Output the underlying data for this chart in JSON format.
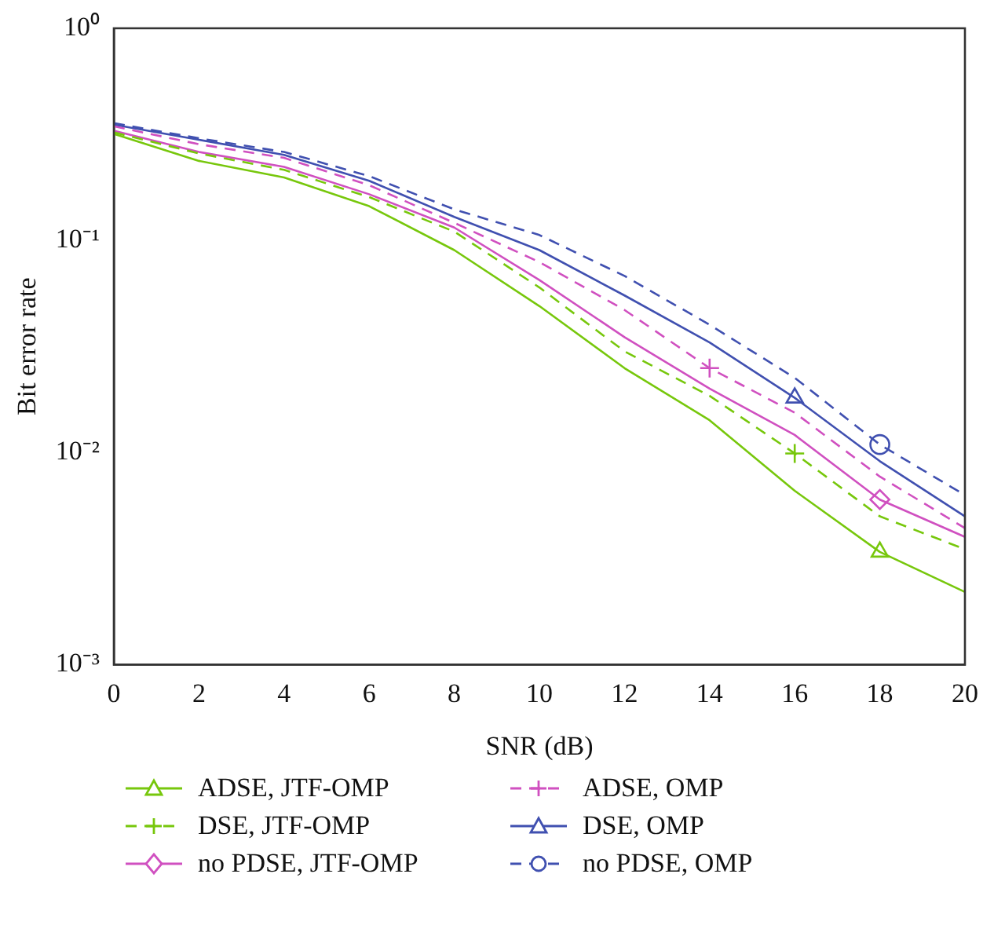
{
  "chart_data": {
    "type": "line",
    "xlabel": "SNR (dB)",
    "ylabel": "Bit error rate",
    "x": [
      0,
      2,
      4,
      6,
      8,
      10,
      12,
      14,
      16,
      18,
      20
    ],
    "series": [
      {
        "name": "ADSE, JTF-OMP",
        "color": "#77c70c",
        "line_style": "solid",
        "values": [
          0.318,
          0.237,
          0.198,
          0.145,
          0.09,
          0.049,
          0.025,
          0.0142,
          0.0066,
          0.0034,
          0.0022
        ]
      },
      {
        "type": "scatter",
        "color": "#77c70c",
        "marker": "triangle",
        "x": [
          18
        ],
        "values": [
          0.0034
        ]
      },
      {
        "name": "DSE, JTF-OMP",
        "color": "#77c70c",
        "line_style": "dashed",
        "values": [
          0.323,
          0.257,
          0.215,
          0.16,
          0.11,
          0.06,
          0.03,
          0.0185,
          0.0099,
          0.005,
          0.0035
        ]
      },
      {
        "type": "scatter",
        "color": "#77c70c",
        "marker": "cross",
        "x": [
          16
        ],
        "values": [
          0.0099
        ]
      },
      {
        "name": "no PDSE, JTF-OMP",
        "color": "#d050c0",
        "line_style": "solid",
        "values": [
          0.329,
          0.261,
          0.222,
          0.165,
          0.115,
          0.065,
          0.035,
          0.02,
          0.0121,
          0.006,
          0.004
        ]
      },
      {
        "type": "scatter",
        "color": "#d050c0",
        "marker": "diamond",
        "x": [
          18
        ],
        "values": [
          0.006
        ]
      },
      {
        "name": "ADSE, OMP",
        "color": "#d050c0",
        "line_style": "dashed",
        "values": [
          0.345,
          0.284,
          0.245,
          0.182,
          0.121,
          0.079,
          0.047,
          0.025,
          0.0154,
          0.0077,
          0.0044
        ]
      },
      {
        "type": "scatter",
        "color": "#d050c0",
        "marker": "cross",
        "x": [
          14
        ],
        "values": [
          0.025
        ]
      },
      {
        "name": "DSE, OMP",
        "color": "#4050b0",
        "line_style": "solid",
        "values": [
          0.351,
          0.298,
          0.253,
          0.191,
          0.129,
          0.09,
          0.055,
          0.033,
          0.0181,
          0.0091,
          0.005
        ]
      },
      {
        "type": "scatter",
        "color": "#4050b0",
        "marker": "triangle",
        "x": [
          16
        ],
        "values": [
          0.0181
        ]
      },
      {
        "name": "no PDSE, OMP",
        "color": "#4050b0",
        "line_style": "dashed",
        "values": [
          0.357,
          0.303,
          0.261,
          0.201,
          0.14,
          0.106,
          0.068,
          0.04,
          0.0225,
          0.0109,
          0.0063
        ]
      },
      {
        "type": "scatter",
        "color": "#4050b0",
        "marker": "circle",
        "x": [
          18
        ],
        "values": [
          0.0109
        ]
      }
    ],
    "log": "y",
    "xlim": [
      0,
      20
    ],
    "xticks": [
      0,
      2,
      4,
      6,
      8,
      10,
      12,
      14,
      16,
      18,
      20
    ],
    "ylim": [
      0.001,
      1
    ],
    "yticks": [
      {
        "value": 0.001,
        "label": "10⁻³"
      },
      {
        "value": 0.01,
        "label": "10⁻²"
      },
      {
        "value": 0.1,
        "label": "10⁻¹"
      },
      {
        "value": 1,
        "label": "10⁰"
      }
    ],
    "grid": false,
    "legend": "bottom"
  }
}
